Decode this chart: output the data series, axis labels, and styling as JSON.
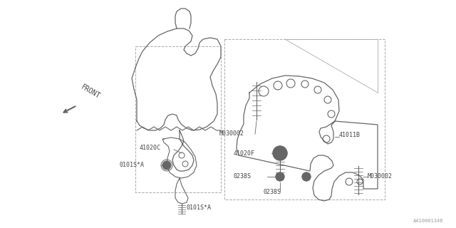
{
  "bg_color": "#ffffff",
  "line_color": "#666666",
  "text_color": "#444444",
  "figure_ref": "A410001346",
  "fig_width": 6.4,
  "fig_height": 3.2,
  "dpi": 100,
  "xlim": [
    0,
    640
  ],
  "ylim": [
    0,
    320
  ]
}
